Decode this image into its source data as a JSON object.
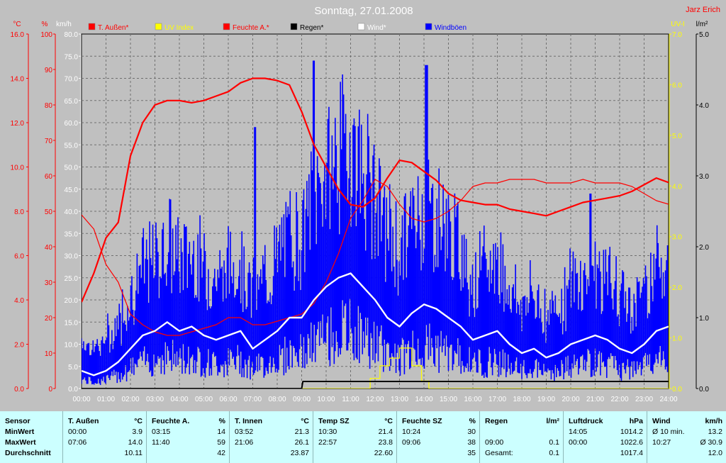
{
  "chart_data": {
    "type": "line",
    "title": "Sonntag, 27.01.2008",
    "author": "Jarz Erich",
    "x_ticks": [
      "00:00",
      "01:00",
      "02:00",
      "03:00",
      "04:00",
      "05:00",
      "06:00",
      "07:00",
      "08:00",
      "09:00",
      "10:00",
      "11:00",
      "12:00",
      "13:00",
      "14:00",
      "15:00",
      "16:00",
      "17:00",
      "18:00",
      "19:00",
      "20:00",
      "21:00",
      "22:00",
      "23:00",
      "24:00"
    ],
    "axes": {
      "temp": {
        "unit": "°C",
        "range": [
          0,
          16
        ],
        "ticks": [
          "0.0",
          "2.0",
          "4.0",
          "6.0",
          "8.0",
          "10.0",
          "12.0",
          "14.0",
          "16.0"
        ],
        "color": "#ff0000"
      },
      "humidity": {
        "unit": "%",
        "range": [
          0,
          100
        ],
        "ticks": [
          "0",
          "10",
          "20",
          "30",
          "40",
          "50",
          "60",
          "70",
          "80",
          "90",
          "100"
        ],
        "color": "#ff0000"
      },
      "wind": {
        "unit": "km/h",
        "range": [
          0,
          80
        ],
        "ticks": [
          "0.0",
          "5.0",
          "10.0",
          "15.0",
          "20.0",
          "25.0",
          "30.0",
          "35.0",
          "40.0",
          "45.0",
          "50.0",
          "55.0",
          "60.0",
          "65.0",
          "70.0",
          "75.0",
          "80.0"
        ],
        "color": "#ffffff"
      },
      "uv": {
        "unit": "UV-I",
        "range": [
          0,
          7
        ],
        "ticks": [
          "0.0",
          "1.0",
          "2.0",
          "3.0",
          "4.0",
          "5.0",
          "6.0",
          "7.0"
        ],
        "color": "#ffff00"
      },
      "rain": {
        "unit": "l/m²",
        "range": [
          0,
          5
        ],
        "ticks": [
          "0.0",
          "1.0",
          "2.0",
          "3.0",
          "4.0",
          "5.0"
        ],
        "color": "#000000"
      }
    },
    "legend": [
      {
        "label": "T. Außen*",
        "color": "#ff0000"
      },
      {
        "label": "UV Index",
        "color": "#ffff00"
      },
      {
        "label": "Feuchte A.*",
        "color": "#ff0000"
      },
      {
        "label": "Regen*",
        "color": "#000000"
      },
      {
        "label": "Wind*",
        "color": "#ffffff"
      },
      {
        "label": "Windböen",
        "color": "#0000ff"
      }
    ],
    "series": [
      {
        "name": "T. Außen*",
        "axis": "temp",
        "color": "#ff0000",
        "x": [
          0,
          0.5,
          1,
          1.5,
          2,
          2.5,
          3,
          3.5,
          4,
          4.5,
          5,
          5.5,
          6,
          6.5,
          7,
          7.5,
          8,
          8.5,
          9,
          9.5,
          10,
          10.5,
          11,
          11.5,
          12,
          12.5,
          13,
          13.5,
          14,
          14.5,
          15,
          15.5,
          16,
          16.5,
          17,
          17.5,
          18,
          18.5,
          19,
          19.5,
          20,
          20.5,
          21,
          21.5,
          22,
          22.5,
          23,
          23.5,
          24
        ],
        "values": [
          3.9,
          5.2,
          6.8,
          7.5,
          10.5,
          12.0,
          12.8,
          13.0,
          13.0,
          12.9,
          13.0,
          13.2,
          13.4,
          13.8,
          14.0,
          14.0,
          13.9,
          13.7,
          12.5,
          11.0,
          10.0,
          9.0,
          8.3,
          8.2,
          8.6,
          9.5,
          10.3,
          10.2,
          9.8,
          9.4,
          8.8,
          8.5,
          8.4,
          8.3,
          8.3,
          8.1,
          8.0,
          7.9,
          7.8,
          8.0,
          8.2,
          8.4,
          8.5,
          8.6,
          8.7,
          8.9,
          9.2,
          9.5,
          9.3
        ]
      },
      {
        "name": "Feuchte A.*",
        "axis": "humidity",
        "color": "#ff0000",
        "x": [
          0,
          0.5,
          1,
          1.5,
          2,
          2.5,
          3,
          3.5,
          4,
          4.5,
          5,
          5.5,
          6,
          6.5,
          7,
          7.5,
          8,
          8.5,
          9,
          9.5,
          10,
          10.5,
          11,
          11.5,
          12,
          12.5,
          13,
          13.5,
          14,
          14.5,
          15,
          15.5,
          16,
          16.5,
          17,
          17.5,
          18,
          18.5,
          19,
          19.5,
          20,
          20.5,
          21,
          21.5,
          22,
          22.5,
          23,
          23.5,
          24
        ],
        "values": [
          49,
          45,
          35,
          30,
          21,
          18,
          16,
          15,
          15,
          16,
          17,
          18,
          20,
          20,
          18,
          18,
          19,
          20,
          21,
          24,
          30,
          38,
          48,
          53,
          59,
          57,
          52,
          48,
          47,
          48,
          50,
          53,
          57,
          58,
          58,
          59,
          59,
          59,
          58,
          58,
          58,
          59,
          58,
          58,
          58,
          57,
          55,
          53,
          52
        ]
      },
      {
        "name": "Wind*",
        "axis": "wind",
        "color": "#ffffff",
        "x": [
          0,
          0.5,
          1,
          1.5,
          2,
          2.5,
          3,
          3.5,
          4,
          4.5,
          5,
          5.5,
          6,
          6.5,
          7,
          7.5,
          8,
          8.5,
          9,
          9.5,
          10,
          10.5,
          11,
          11.5,
          12,
          12.5,
          13,
          13.5,
          14,
          14.5,
          15,
          15.5,
          16,
          16.5,
          17,
          17.5,
          18,
          18.5,
          19,
          19.5,
          20,
          20.5,
          21,
          21.5,
          22,
          22.5,
          23,
          23.5,
          24
        ],
        "values": [
          4,
          3,
          4,
          6,
          9,
          12,
          13,
          15,
          13,
          14,
          12,
          11,
          12,
          13,
          9,
          11,
          13,
          16,
          16,
          20,
          23,
          25,
          26,
          23,
          20,
          16,
          14,
          17,
          19,
          18,
          16,
          14,
          11,
          12,
          13,
          10,
          8,
          9,
          7,
          8,
          10,
          11,
          12,
          11,
          9,
          8,
          10,
          13,
          14
        ]
      },
      {
        "name": "UV Index",
        "axis": "uv",
        "color": "#ffff00",
        "x": [
          0,
          11.5,
          11.8,
          12.2,
          12.6,
          13.0,
          13.5,
          13.9,
          14.2,
          24
        ],
        "values": [
          0,
          0,
          0.2,
          0.45,
          0.6,
          0.8,
          0.45,
          0.15,
          0,
          0
        ]
      },
      {
        "name": "Regen*",
        "axis": "rain",
        "color": "#000000",
        "x": [
          0,
          9.0,
          9.05,
          9.1,
          24
        ],
        "values": [
          0,
          0,
          0.1,
          0.1,
          0.1
        ]
      }
    ],
    "gusts": {
      "name": "Windböen",
      "axis": "wind",
      "color": "#0000ff",
      "peak_values": [
        {
          "x": 9.5,
          "y": 74
        },
        {
          "x": 14.1,
          "y": 73
        },
        {
          "x": 7.1,
          "y": 59
        },
        {
          "x": 20.8,
          "y": 44
        }
      ]
    }
  },
  "table": {
    "columns": [
      {
        "header": "Sensor",
        "rows": [
          "MinWert",
          "MaxWert",
          "Durchschnitt"
        ]
      },
      {
        "header": "T. Außen",
        "unit": "°C",
        "times": [
          "00:00",
          "07:06",
          ""
        ],
        "values": [
          "3.9",
          "14.0",
          "10.11"
        ]
      },
      {
        "header": "Feuchte A.",
        "unit": "%",
        "times": [
          "03:15",
          "11:40",
          ""
        ],
        "values": [
          "14",
          "59",
          "42"
        ]
      },
      {
        "header": "T. Innen",
        "unit": "°C",
        "times": [
          "03:52",
          "21:06",
          ""
        ],
        "values": [
          "21.3",
          "26.1",
          "23.87"
        ]
      },
      {
        "header": "Temp SZ",
        "unit": "°C",
        "times": [
          "10:30",
          "22:57",
          ""
        ],
        "values": [
          "21.4",
          "23.8",
          "22.60"
        ]
      },
      {
        "header": "Feuchte SZ",
        "unit": "%",
        "times": [
          "10:24",
          "09:06",
          ""
        ],
        "values": [
          "30",
          "38",
          "35"
        ]
      },
      {
        "header": "Regen",
        "unit": "l/m²",
        "times": [
          "",
          "09:00",
          "Gesamt:"
        ],
        "values": [
          "",
          "0.1",
          "0.1"
        ]
      },
      {
        "header": "Luftdruck",
        "unit": "hPa",
        "times": [
          "14:05",
          "00:00",
          ""
        ],
        "values": [
          "1014.2",
          "1022.6",
          "1017.4"
        ]
      },
      {
        "header": "Wind",
        "unit": "km/h",
        "times": [
          "Ø 10 min.",
          "10:27",
          ""
        ],
        "values": [
          "13.2",
          "Ø 30.9",
          "12.0"
        ]
      }
    ]
  }
}
